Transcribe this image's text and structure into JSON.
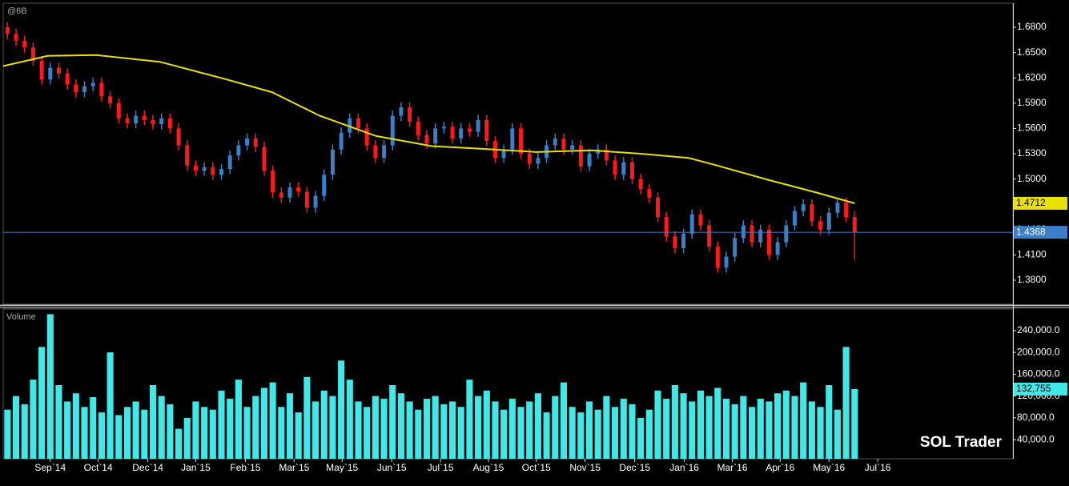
{
  "chart_data": {
    "type": "ohlc",
    "symbol": "@6B",
    "volume_title": "Volume",
    "watermark": "SOL Trader",
    "xlim": [
      0,
      118
    ],
    "xticks": [
      {
        "value": 5.5,
        "label": "Sep`14"
      },
      {
        "value": 11.1,
        "label": "Oct`14"
      },
      {
        "value": 16.9,
        "label": "Dec`14"
      },
      {
        "value": 22.5,
        "label": "Jan`15"
      },
      {
        "value": 28.3,
        "label": "Feb`15"
      },
      {
        "value": 34.0,
        "label": "Mar`15"
      },
      {
        "value": 39.6,
        "label": "May`15"
      },
      {
        "value": 45.4,
        "label": "Jun`15"
      },
      {
        "value": 51.1,
        "label": "Jul`15"
      },
      {
        "value": 56.7,
        "label": "Aug`15"
      },
      {
        "value": 62.3,
        "label": "Oct`15"
      },
      {
        "value": 68.0,
        "label": "Nov`15"
      },
      {
        "value": 73.8,
        "label": "Dec`15"
      },
      {
        "value": 79.6,
        "label": "Jan`16"
      },
      {
        "value": 85.2,
        "label": "Mar`16"
      },
      {
        "value": 90.8,
        "label": "Apr`16"
      },
      {
        "value": 96.5,
        "label": "May`16"
      },
      {
        "value": 102.2,
        "label": "Jul`16"
      }
    ],
    "ylim": [
      1.3515,
      1.7085
    ],
    "yticks": [
      {
        "value": 1.38,
        "label": "1.3800"
      },
      {
        "value": 1.41,
        "label": "1.4100"
      },
      {
        "value": 1.44,
        "label": "1.4400"
      },
      {
        "value": 1.47,
        "label": "1.4700"
      },
      {
        "value": 1.5,
        "label": "1.5000"
      },
      {
        "value": 1.53,
        "label": "1.5300"
      },
      {
        "value": 1.56,
        "label": "1.5600"
      },
      {
        "value": 1.59,
        "label": "1.5900"
      },
      {
        "value": 1.62,
        "label": "1.6200"
      },
      {
        "value": 1.65,
        "label": "1.6500"
      },
      {
        "value": 1.68,
        "label": "1.6800"
      }
    ],
    "up_color": "#3a7fc8",
    "down_color": "#ff1a1a",
    "open": [
      1.68,
      1.672,
      1.664,
      1.656,
      1.64,
      1.618,
      1.632,
      1.625,
      1.612,
      1.603,
      1.61,
      1.614,
      1.598,
      1.59,
      1.572,
      1.566,
      1.575,
      1.57,
      1.565,
      1.572,
      1.56,
      1.54,
      1.516,
      1.51,
      1.514,
      1.505,
      1.512,
      1.528,
      1.54,
      1.548,
      1.538,
      1.51,
      1.484,
      1.478,
      1.49,
      1.485,
      1.466,
      1.48,
      1.505,
      1.535,
      1.555,
      1.572,
      1.56,
      1.54,
      1.525,
      1.54,
      1.575,
      1.585,
      1.568,
      1.552,
      1.542,
      1.56,
      1.562,
      1.548,
      1.56,
      1.556,
      1.57,
      1.545,
      1.525,
      1.535,
      1.56,
      1.53,
      1.518,
      1.525,
      1.54,
      1.548,
      1.535,
      1.54,
      1.515,
      1.53,
      1.535,
      1.522,
      1.505,
      1.52,
      1.5,
      1.488,
      1.478,
      1.455,
      1.432,
      1.418,
      1.435,
      1.458,
      1.445,
      1.42,
      1.395,
      1.408,
      1.43,
      1.445,
      1.425,
      1.44,
      1.41,
      1.425,
      1.445,
      1.462,
      1.47,
      1.45,
      1.44,
      1.46,
      1.472,
      1.455
    ],
    "high": [
      1.686,
      1.678,
      1.67,
      1.662,
      1.646,
      1.638,
      1.638,
      1.631,
      1.618,
      1.616,
      1.62,
      1.62,
      1.604,
      1.596,
      1.578,
      1.581,
      1.581,
      1.576,
      1.578,
      1.578,
      1.566,
      1.546,
      1.522,
      1.52,
      1.52,
      1.518,
      1.534,
      1.546,
      1.554,
      1.554,
      1.544,
      1.516,
      1.49,
      1.496,
      1.496,
      1.491,
      1.486,
      1.511,
      1.541,
      1.561,
      1.578,
      1.578,
      1.566,
      1.546,
      1.546,
      1.581,
      1.591,
      1.591,
      1.574,
      1.558,
      1.566,
      1.568,
      1.568,
      1.566,
      1.566,
      1.576,
      1.576,
      1.551,
      1.541,
      1.566,
      1.566,
      1.536,
      1.531,
      1.546,
      1.554,
      1.554,
      1.546,
      1.546,
      1.536,
      1.541,
      1.541,
      1.528,
      1.526,
      1.526,
      1.506,
      1.494,
      1.484,
      1.461,
      1.438,
      1.441,
      1.464,
      1.464,
      1.451,
      1.426,
      1.414,
      1.436,
      1.451,
      1.451,
      1.446,
      1.446,
      1.431,
      1.451,
      1.468,
      1.476,
      1.476,
      1.456,
      1.466,
      1.478,
      1.478,
      1.462
    ],
    "low": [
      1.666,
      1.658,
      1.65,
      1.634,
      1.612,
      1.612,
      1.619,
      1.606,
      1.597,
      1.597,
      1.604,
      1.592,
      1.584,
      1.566,
      1.56,
      1.56,
      1.564,
      1.559,
      1.559,
      1.554,
      1.534,
      1.51,
      1.504,
      1.504,
      1.499,
      1.499,
      1.506,
      1.522,
      1.534,
      1.532,
      1.504,
      1.478,
      1.472,
      1.472,
      1.479,
      1.46,
      1.46,
      1.474,
      1.499,
      1.529,
      1.549,
      1.554,
      1.534,
      1.519,
      1.519,
      1.534,
      1.569,
      1.562,
      1.546,
      1.536,
      1.536,
      1.554,
      1.542,
      1.542,
      1.55,
      1.55,
      1.539,
      1.519,
      1.519,
      1.529,
      1.524,
      1.512,
      1.512,
      1.519,
      1.534,
      1.529,
      1.529,
      1.509,
      1.509,
      1.524,
      1.516,
      1.499,
      1.499,
      1.494,
      1.482,
      1.472,
      1.449,
      1.426,
      1.412,
      1.412,
      1.429,
      1.439,
      1.414,
      1.389,
      1.389,
      1.402,
      1.424,
      1.419,
      1.419,
      1.404,
      1.404,
      1.419,
      1.439,
      1.456,
      1.444,
      1.434,
      1.434,
      1.454,
      1.449,
      1.404
    ],
    "close": [
      1.672,
      1.664,
      1.656,
      1.64,
      1.618,
      1.632,
      1.625,
      1.612,
      1.603,
      1.61,
      1.614,
      1.598,
      1.59,
      1.572,
      1.566,
      1.575,
      1.57,
      1.565,
      1.572,
      1.56,
      1.54,
      1.516,
      1.51,
      1.514,
      1.505,
      1.512,
      1.528,
      1.54,
      1.548,
      1.538,
      1.51,
      1.484,
      1.478,
      1.49,
      1.485,
      1.466,
      1.48,
      1.505,
      1.535,
      1.555,
      1.572,
      1.56,
      1.54,
      1.525,
      1.54,
      1.575,
      1.585,
      1.568,
      1.552,
      1.542,
      1.56,
      1.562,
      1.548,
      1.56,
      1.556,
      1.57,
      1.545,
      1.525,
      1.535,
      1.56,
      1.53,
      1.518,
      1.525,
      1.54,
      1.548,
      1.535,
      1.54,
      1.515,
      1.53,
      1.535,
      1.522,
      1.505,
      1.52,
      1.5,
      1.488,
      1.478,
      1.455,
      1.432,
      1.418,
      1.435,
      1.458,
      1.445,
      1.42,
      1.395,
      1.408,
      1.43,
      1.445,
      1.425,
      1.44,
      1.41,
      1.425,
      1.445,
      1.462,
      1.47,
      1.45,
      1.44,
      1.46,
      1.472,
      1.455,
      1.4368
    ],
    "ma": {
      "color": "#e8e000",
      "x": [
        0,
        5.2,
        10.9,
        18.3,
        25.8,
        31.4,
        37.0,
        43.6,
        50.1,
        55.8,
        62.3,
        68.8,
        74.5,
        80.1,
        83.8,
        89.4,
        95.0,
        99.5
      ],
      "values": [
        1.634,
        1.646,
        1.647,
        1.639,
        1.619,
        1.603,
        1.575,
        1.551,
        1.539,
        1.536,
        1.532,
        1.534,
        1.53,
        1.525,
        1.515,
        1.499,
        1.484,
        1.4712
      ],
      "last_label": "1.4712"
    },
    "volume": {
      "color": "#40e8e8",
      "ylim": [
        5000,
        279400
      ],
      "yticks": [
        {
          "value": 40000,
          "label": "40,000.0"
        },
        {
          "value": 80000,
          "label": "80,000.0"
        },
        {
          "value": 120000,
          "label": "120,000.0"
        },
        {
          "value": 160000,
          "label": "160,000.0"
        },
        {
          "value": 200000,
          "label": "200,000.0"
        },
        {
          "value": 240000,
          "label": "240,000.0"
        }
      ],
      "values": [
        95000,
        120000,
        105000,
        150000,
        210000,
        270000,
        140000,
        110000,
        125000,
        100000,
        118000,
        90000,
        200000,
        85000,
        100000,
        110000,
        95000,
        140000,
        120000,
        105000,
        60000,
        80000,
        110000,
        100000,
        95000,
        130000,
        115000,
        150000,
        100000,
        120000,
        135000,
        145000,
        100000,
        125000,
        90000,
        155000,
        110000,
        130000,
        120000,
        185000,
        150000,
        110000,
        100000,
        120000,
        115000,
        140000,
        125000,
        110000,
        95000,
        115000,
        120000,
        105000,
        110000,
        100000,
        150000,
        120000,
        130000,
        110000,
        95000,
        115000,
        100000,
        110000,
        125000,
        90000,
        120000,
        145000,
        100000,
        90000,
        110000,
        95000,
        120000,
        100000,
        115000,
        105000,
        80000,
        95000,
        130000,
        115000,
        140000,
        125000,
        110000,
        130000,
        120000,
        135000,
        115000,
        105000,
        120000,
        100000,
        115000,
        110000,
        125000,
        130000,
        120000,
        145000,
        110000,
        100000,
        140000,
        95000,
        210000,
        132755
      ],
      "last_label": "132,755"
    }
  }
}
